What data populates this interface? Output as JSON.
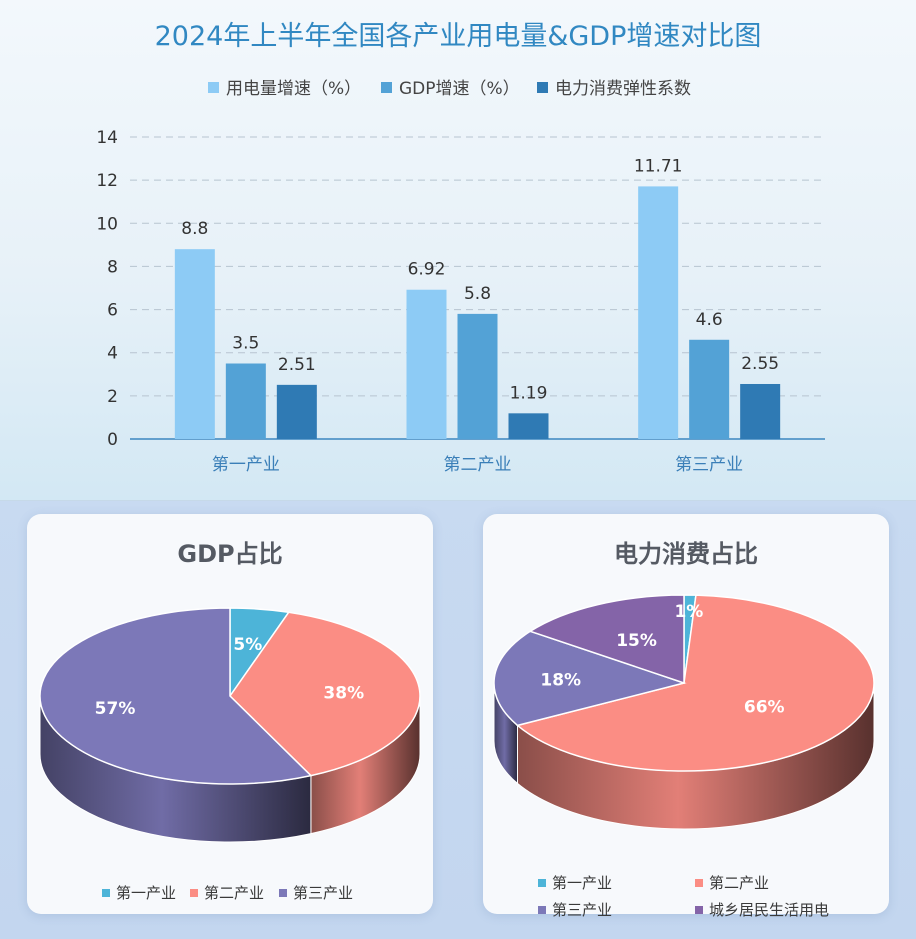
{
  "chart_data": [
    {
      "type": "bar",
      "title": "2024年上半年全国各产业用电量&GDP增速对比图",
      "categories": [
        "第一产业",
        "第二产业",
        "第三产业"
      ],
      "series": [
        {
          "name": "用电量增速（%）",
          "values": [
            8.8,
            6.92,
            11.71
          ],
          "color": "#8dcbf5"
        },
        {
          "name": "GDP增速（%）",
          "values": [
            3.5,
            5.8,
            4.6
          ],
          "color": "#53a2d6"
        },
        {
          "name": "电力消费弹性系数",
          "values": [
            2.51,
            1.19,
            2.55
          ],
          "color": "#2f7ab4"
        }
      ],
      "data_labels": [
        [
          "8.8",
          "3.5",
          "2.51"
        ],
        [
          "6.92",
          "5.8",
          "1.19"
        ],
        [
          "11.71",
          "4.6",
          "2.55"
        ]
      ],
      "ylim": [
        0,
        14
      ],
      "yticks": [
        "0",
        "2",
        "4",
        "6",
        "8",
        "10",
        "12",
        "14"
      ],
      "grid": true,
      "legend": "top"
    },
    {
      "type": "pie",
      "title": "GDP占比",
      "labels": [
        "第一产业",
        "第二产业",
        "第三产业"
      ],
      "values": [
        5,
        38,
        57
      ],
      "value_labels": [
        "5%",
        "38%",
        "57%"
      ],
      "colors": [
        "#4db4d8",
        "#fb8d84",
        "#7c78b8"
      ],
      "legend": "bottom"
    },
    {
      "type": "pie",
      "title": "电力消费占比",
      "labels": [
        "第一产业",
        "第二产业",
        "第三产业",
        "城乡居民生活用电"
      ],
      "values": [
        1,
        66,
        18,
        15
      ],
      "value_labels": [
        "1%",
        "66%",
        "18%",
        "15%"
      ],
      "colors": [
        "#4db4d8",
        "#fb8d84",
        "#7c78b8",
        "#8464a8"
      ],
      "legend": "bottom"
    }
  ]
}
